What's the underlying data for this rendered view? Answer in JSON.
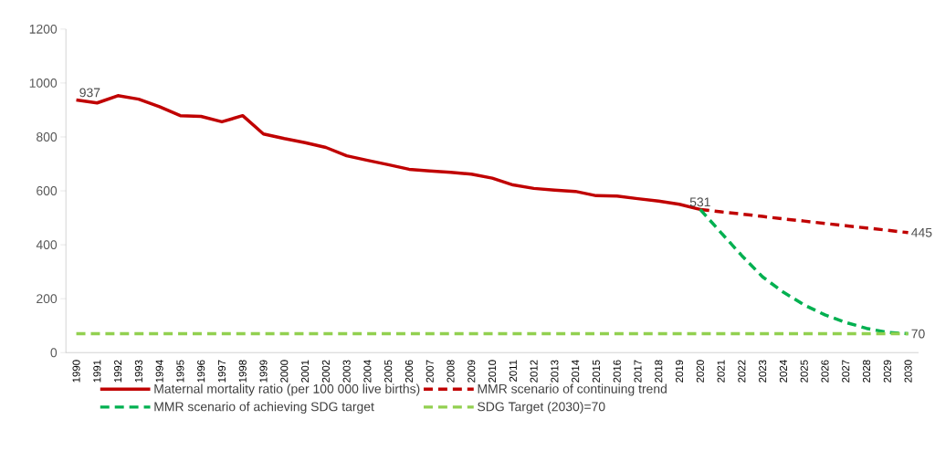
{
  "chart_data": {
    "type": "line",
    "categories": [
      "1990",
      "1991",
      "1992",
      "1993",
      "1994",
      "1995",
      "1996",
      "1997",
      "1998",
      "1999",
      "2000",
      "2001",
      "2002",
      "2003",
      "2004",
      "2005",
      "2006",
      "2007",
      "2008",
      "2009",
      "2010",
      "2011",
      "2012",
      "2013",
      "2014",
      "2015",
      "2016",
      "2017",
      "2018",
      "2019",
      "2020",
      "2021",
      "2022",
      "2023",
      "2024",
      "2025",
      "2026",
      "2027",
      "2028",
      "2029",
      "2030"
    ],
    "series": [
      {
        "name": "Maternal mortality ratio (per 100 000 live births)",
        "color": "#c00000",
        "line_style": "solid",
        "values": [
          937,
          926,
          953,
          940,
          912,
          879,
          876,
          856,
          879,
          811,
          794,
          779,
          761,
          730,
          713,
          697,
          680,
          674,
          669,
          662,
          647,
          622,
          609,
          603,
          598,
          582,
          581,
          571,
          562,
          550,
          531,
          null,
          null,
          null,
          null,
          null,
          null,
          null,
          null,
          null,
          null
        ]
      },
      {
        "name": "MMR scenario of continuing trend",
        "color": "#c00000",
        "line_style": "dashed",
        "values": [
          null,
          null,
          null,
          null,
          null,
          null,
          null,
          null,
          null,
          null,
          null,
          null,
          null,
          null,
          null,
          null,
          null,
          null,
          null,
          null,
          null,
          null,
          null,
          null,
          null,
          null,
          null,
          null,
          null,
          null,
          531,
          522,
          514,
          505,
          496,
          488,
          479,
          471,
          462,
          454,
          445
        ]
      },
      {
        "name": "MMR scenario of achieving SDG target",
        "color": "#00b050",
        "line_style": "dashed",
        "values": [
          null,
          null,
          null,
          null,
          null,
          null,
          null,
          null,
          null,
          null,
          null,
          null,
          null,
          null,
          null,
          null,
          null,
          null,
          null,
          null,
          null,
          null,
          null,
          null,
          null,
          null,
          null,
          null,
          null,
          null,
          531,
          445,
          360,
          281,
          224,
          177,
          140,
          112,
          90,
          75,
          70
        ]
      },
      {
        "name": "SDG Target (2030)=70",
        "color": "#92d050",
        "line_style": "dashed",
        "values": [
          70,
          70,
          70,
          70,
          70,
          70,
          70,
          70,
          70,
          70,
          70,
          70,
          70,
          70,
          70,
          70,
          70,
          70,
          70,
          70,
          70,
          70,
          70,
          70,
          70,
          70,
          70,
          70,
          70,
          70,
          70,
          70,
          70,
          70,
          70,
          70,
          70,
          70,
          70,
          70,
          70
        ]
      }
    ],
    "ylim": [
      0,
      1200
    ],
    "yticks": [
      0,
      200,
      400,
      600,
      800,
      1000,
      1200
    ],
    "grid": false,
    "legend": "bottom",
    "annotations": [
      {
        "text": "937",
        "x": "1990",
        "y": 937
      },
      {
        "text": "531",
        "x": "2020",
        "y": 531
      },
      {
        "text": "445",
        "x": "2030",
        "y": 445
      },
      {
        "text": "70",
        "x": "2030",
        "y": 70
      }
    ]
  }
}
